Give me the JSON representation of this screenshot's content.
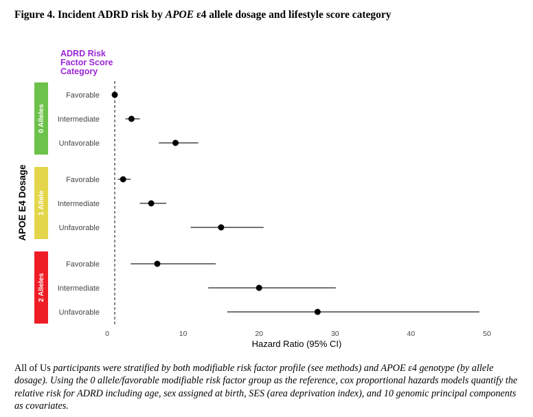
{
  "figure": {
    "title_prefix": "Figure 4. Incident ADRD risk by ",
    "title_gene": "APOE",
    "title_suffix": " ε4 allele dosage and lifestyle score category"
  },
  "caption": {
    "lead": "All of Us",
    "rest": " participants were stratified by both modifiable risk factor profile (see methods) and APOE ε4 genotype (by allele dosage). Using the 0 allele/favorable modifiable risk factor group as the reference, cox proportional hazards models quantify the relative risk for ADRD including age, sex assigned at birth, SES (area deprivation index), and 10 genomic principal components as covariates."
  },
  "chart_data": {
    "type": "scatter",
    "subtype": "forest-plot",
    "legend_title": "ADRD Risk Factor Score Category",
    "legend_title_lines": [
      "ADRD Risk",
      "Factor Score",
      "Category"
    ],
    "xlabel": "Hazard Ratio (95% CI)",
    "ylabel": "APOE E4 Dosage",
    "xlim": [
      0,
      50
    ],
    "x_ticks": [
      0,
      10,
      20,
      30,
      40,
      50
    ],
    "reference_line": 1,
    "grid": false,
    "groups": [
      {
        "label": "0 Alleles",
        "color": "#6cc24a",
        "rows": [
          {
            "category": "Favorable",
            "hr": 1.0,
            "lower": 1.0,
            "upper": 1.0
          },
          {
            "category": "Intermediate",
            "hr": 3.2,
            "lower": 2.4,
            "upper": 4.3
          },
          {
            "category": "Unfavorable",
            "hr": 9.0,
            "lower": 6.8,
            "upper": 12.0
          }
        ]
      },
      {
        "label": "1 Allele",
        "color": "#e3d64b",
        "rows": [
          {
            "category": "Favorable",
            "hr": 2.1,
            "lower": 1.4,
            "upper": 3.1
          },
          {
            "category": "Intermediate",
            "hr": 5.8,
            "lower": 4.3,
            "upper": 7.8
          },
          {
            "category": "Unfavorable",
            "hr": 15.0,
            "lower": 11.0,
            "upper": 20.6
          }
        ]
      },
      {
        "label": "2 Alleles",
        "color": "#ee1c25",
        "rows": [
          {
            "category": "Favorable",
            "hr": 6.6,
            "lower": 3.1,
            "upper": 14.3
          },
          {
            "category": "Intermediate",
            "hr": 20.0,
            "lower": 13.3,
            "upper": 30.1
          },
          {
            "category": "Unfavorable",
            "hr": 27.7,
            "lower": 15.8,
            "upper": 49.0
          }
        ]
      }
    ]
  }
}
